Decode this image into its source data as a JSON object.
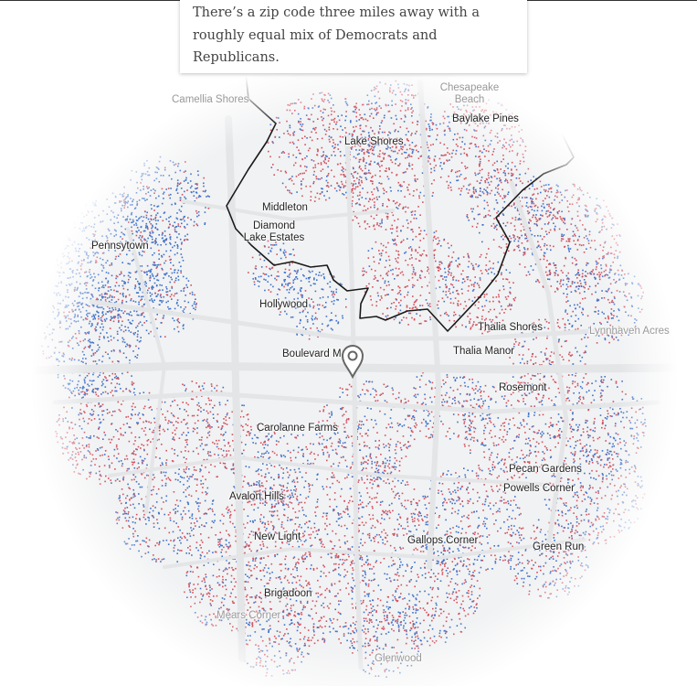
{
  "callout": {
    "text": "There’s a zip code three miles away with a roughly equal mix of Democrats and Republicans."
  },
  "colors": {
    "democrat": "#3f72c9",
    "republican": "#d1525f",
    "road": "#e4e5e7",
    "boundary": "#1a1a1a"
  },
  "places": [
    {
      "name": "Camellia Shores",
      "style": "faint"
    },
    {
      "name": "Chesapeake Beach",
      "style": "faint"
    },
    {
      "name": "Baylake Pines",
      "style": "normal"
    },
    {
      "name": "Lake Shores",
      "style": "normal"
    },
    {
      "name": "Middleton",
      "style": "normal"
    },
    {
      "name": "Diamond Lake Estates",
      "style": "normal"
    },
    {
      "name": "Pennsytown",
      "style": "normal"
    },
    {
      "name": "Hollywood",
      "style": "normal"
    },
    {
      "name": "Boulevard M",
      "style": "normal"
    },
    {
      "name": "Thalia Shores",
      "style": "normal"
    },
    {
      "name": "Lynnhaven Acres",
      "style": "faint"
    },
    {
      "name": "Thalia Manor",
      "style": "normal"
    },
    {
      "name": "Rosemont",
      "style": "normal"
    },
    {
      "name": "Carolanne Farms",
      "style": "normal"
    },
    {
      "name": "Pecan Gardens",
      "style": "normal"
    },
    {
      "name": "Powells Corner",
      "style": "normal"
    },
    {
      "name": "Avalon Hills",
      "style": "normal"
    },
    {
      "name": "New Light",
      "style": "normal"
    },
    {
      "name": "Gallops Corner",
      "style": "normal"
    },
    {
      "name": "Green Run",
      "style": "normal"
    },
    {
      "name": "Brigadoon",
      "style": "normal"
    },
    {
      "name": "Mears Corner",
      "style": "faint"
    },
    {
      "name": "Glenwood",
      "style": "faint"
    }
  ],
  "marker": {
    "icon": "location-pin-icon"
  }
}
